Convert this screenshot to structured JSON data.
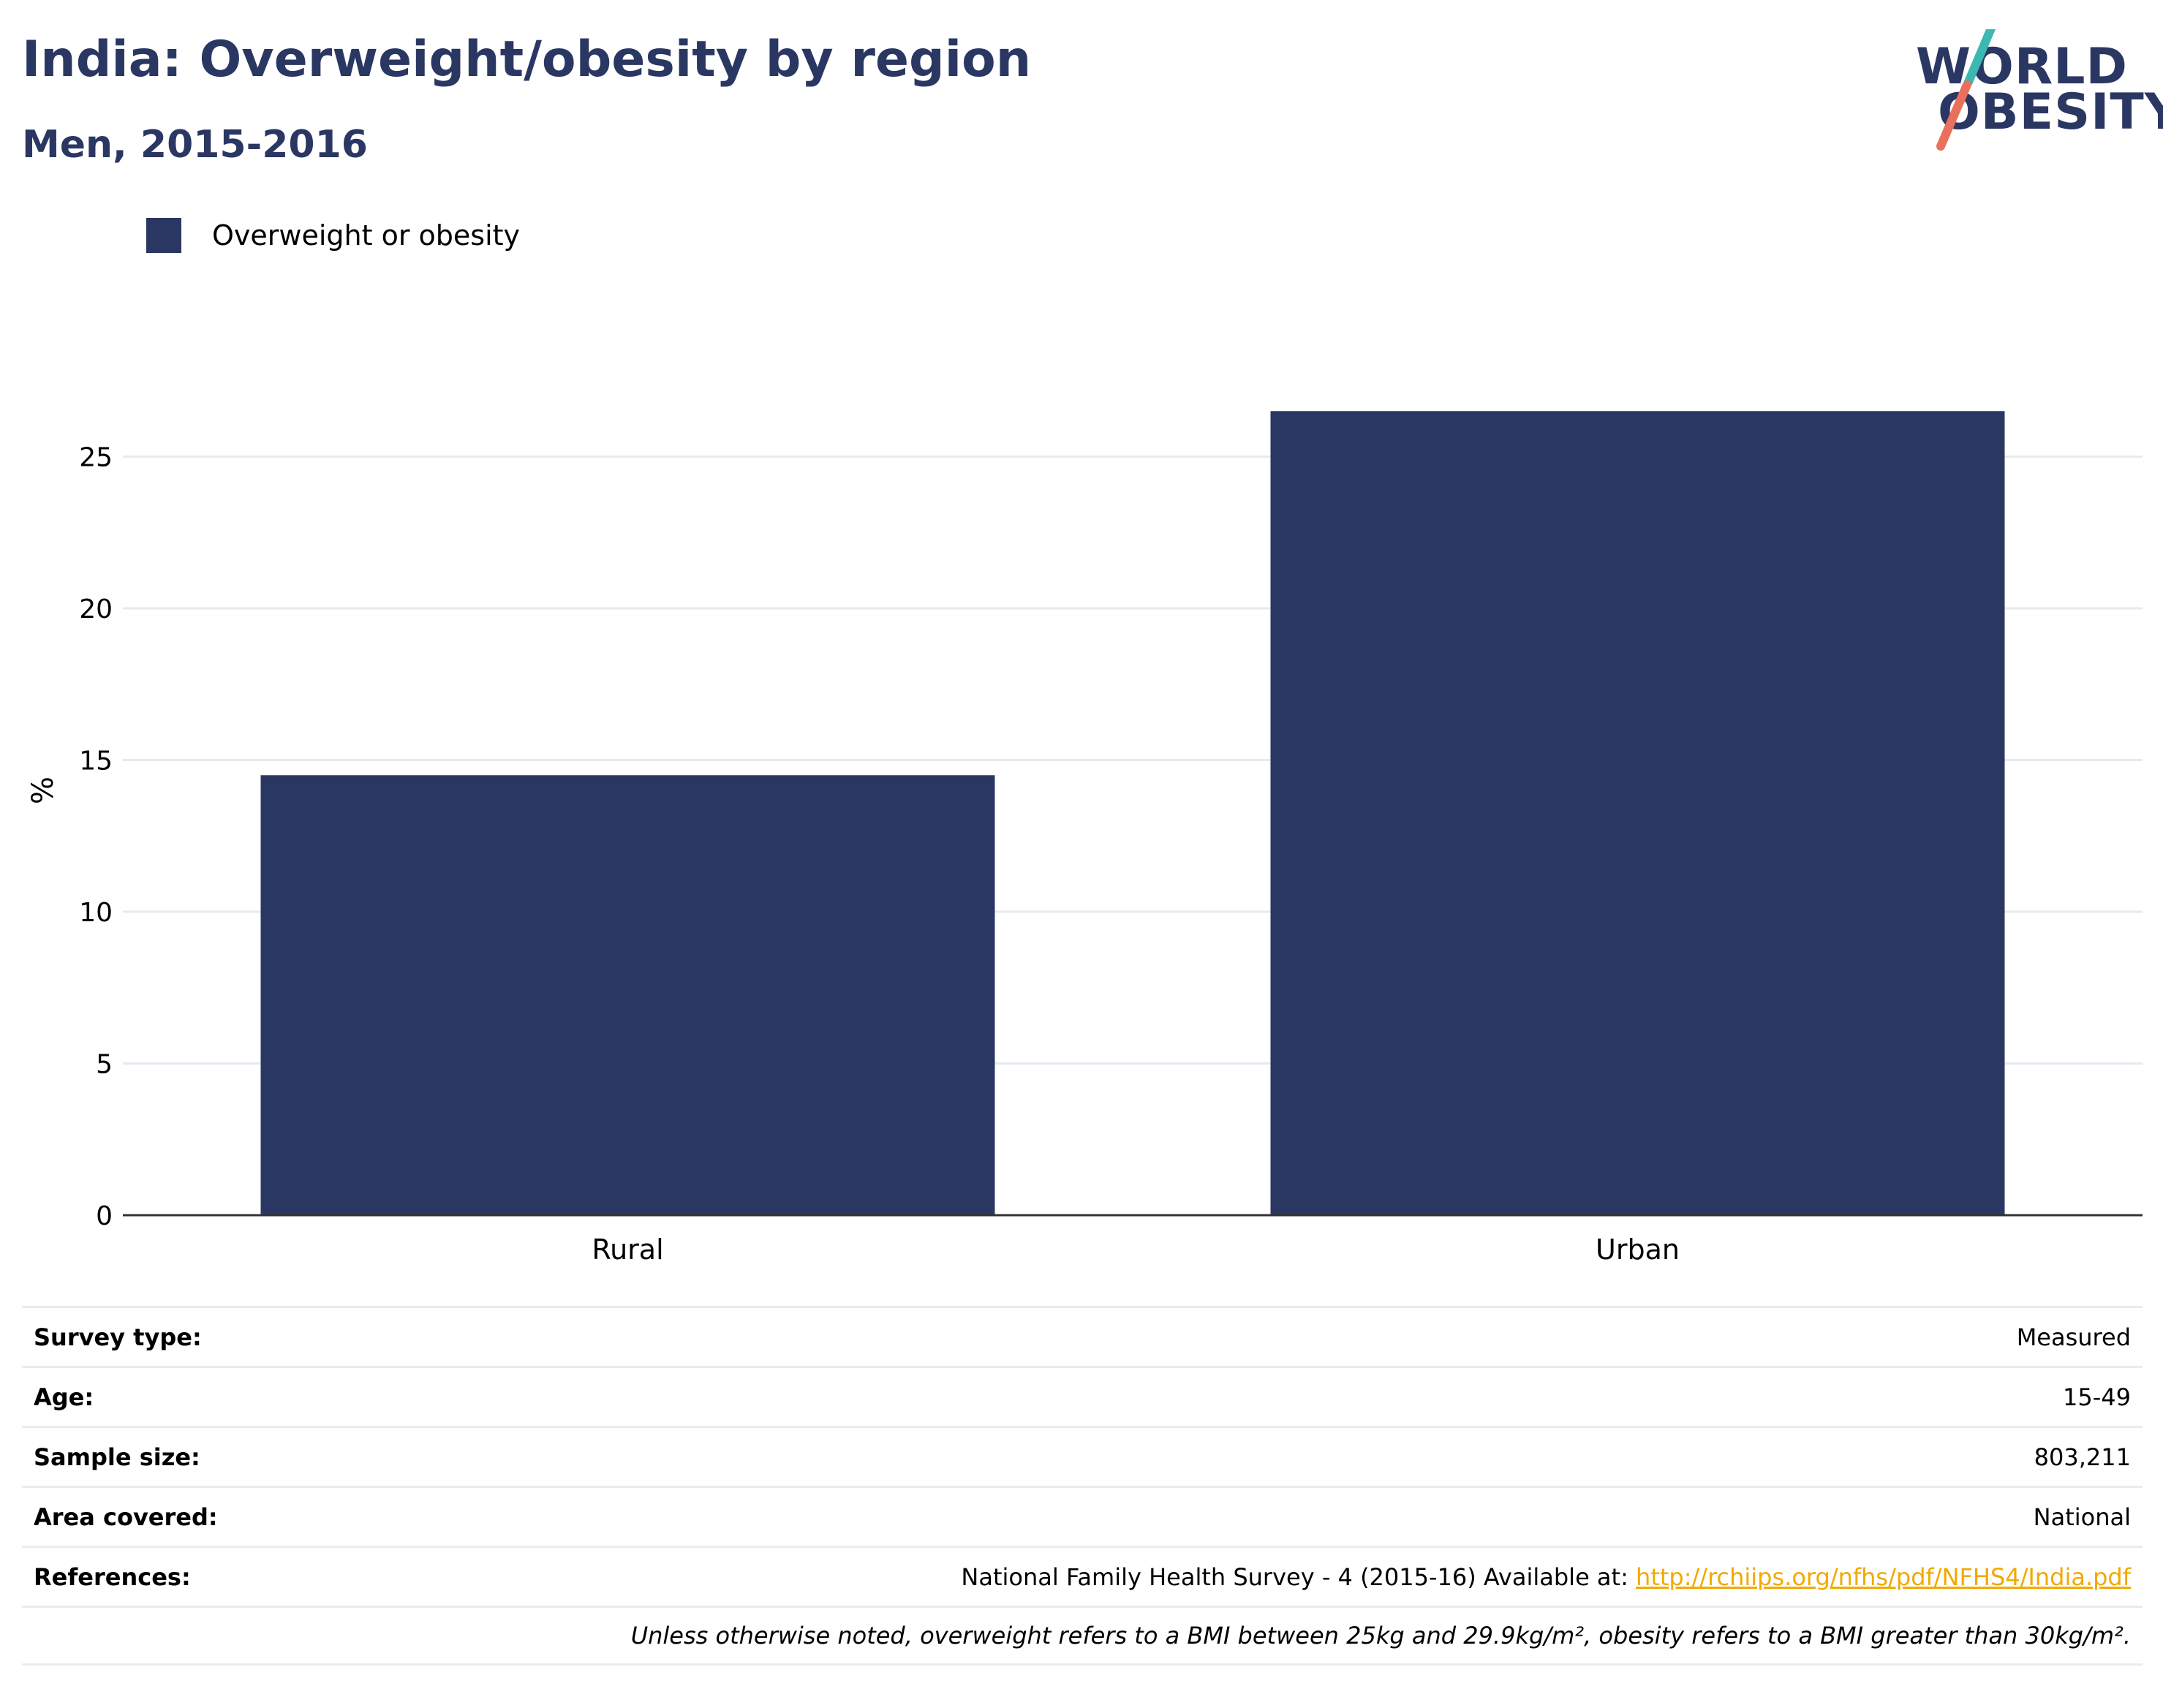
{
  "header": {
    "title": "India: Overweight/obesity by region",
    "subtitle": "Men, 2015-2016"
  },
  "logo": {
    "line1": "WORLD",
    "line2": "OBESITY",
    "colors": {
      "text": "#2b3763",
      "slash_top": "#3bb8b0",
      "slash_bottom": "#e8705c"
    }
  },
  "chart_data": {
    "type": "bar",
    "categories": [
      "Rural",
      "Urban"
    ],
    "series": [
      {
        "name": "Overweight or obesity",
        "values": [
          14.5,
          26.5
        ],
        "color": "#2b3763"
      }
    ],
    "ylabel": "%",
    "ylim": [
      0,
      28
    ],
    "yticks": [
      0,
      5,
      10,
      15,
      20,
      25
    ],
    "grid": true,
    "legend": "top-left"
  },
  "meta": {
    "rows": [
      {
        "key": "Survey type:",
        "value": "Measured"
      },
      {
        "key": "Age:",
        "value": "15-49"
      },
      {
        "key": "Sample size:",
        "value": "803,211"
      },
      {
        "key": "Area covered:",
        "value": "National"
      }
    ],
    "references": {
      "key": "References:",
      "text": "National Family Health Survey - 4 (2015-16) Available at: ",
      "link": "http://rchiips.org/nfhs/pdf/NFHS4/India.pdf"
    },
    "note": "Unless otherwise noted, overweight refers to a BMI between 25kg and 29.9kg/m², obesity refers to a BMI greater than 30kg/m²."
  }
}
